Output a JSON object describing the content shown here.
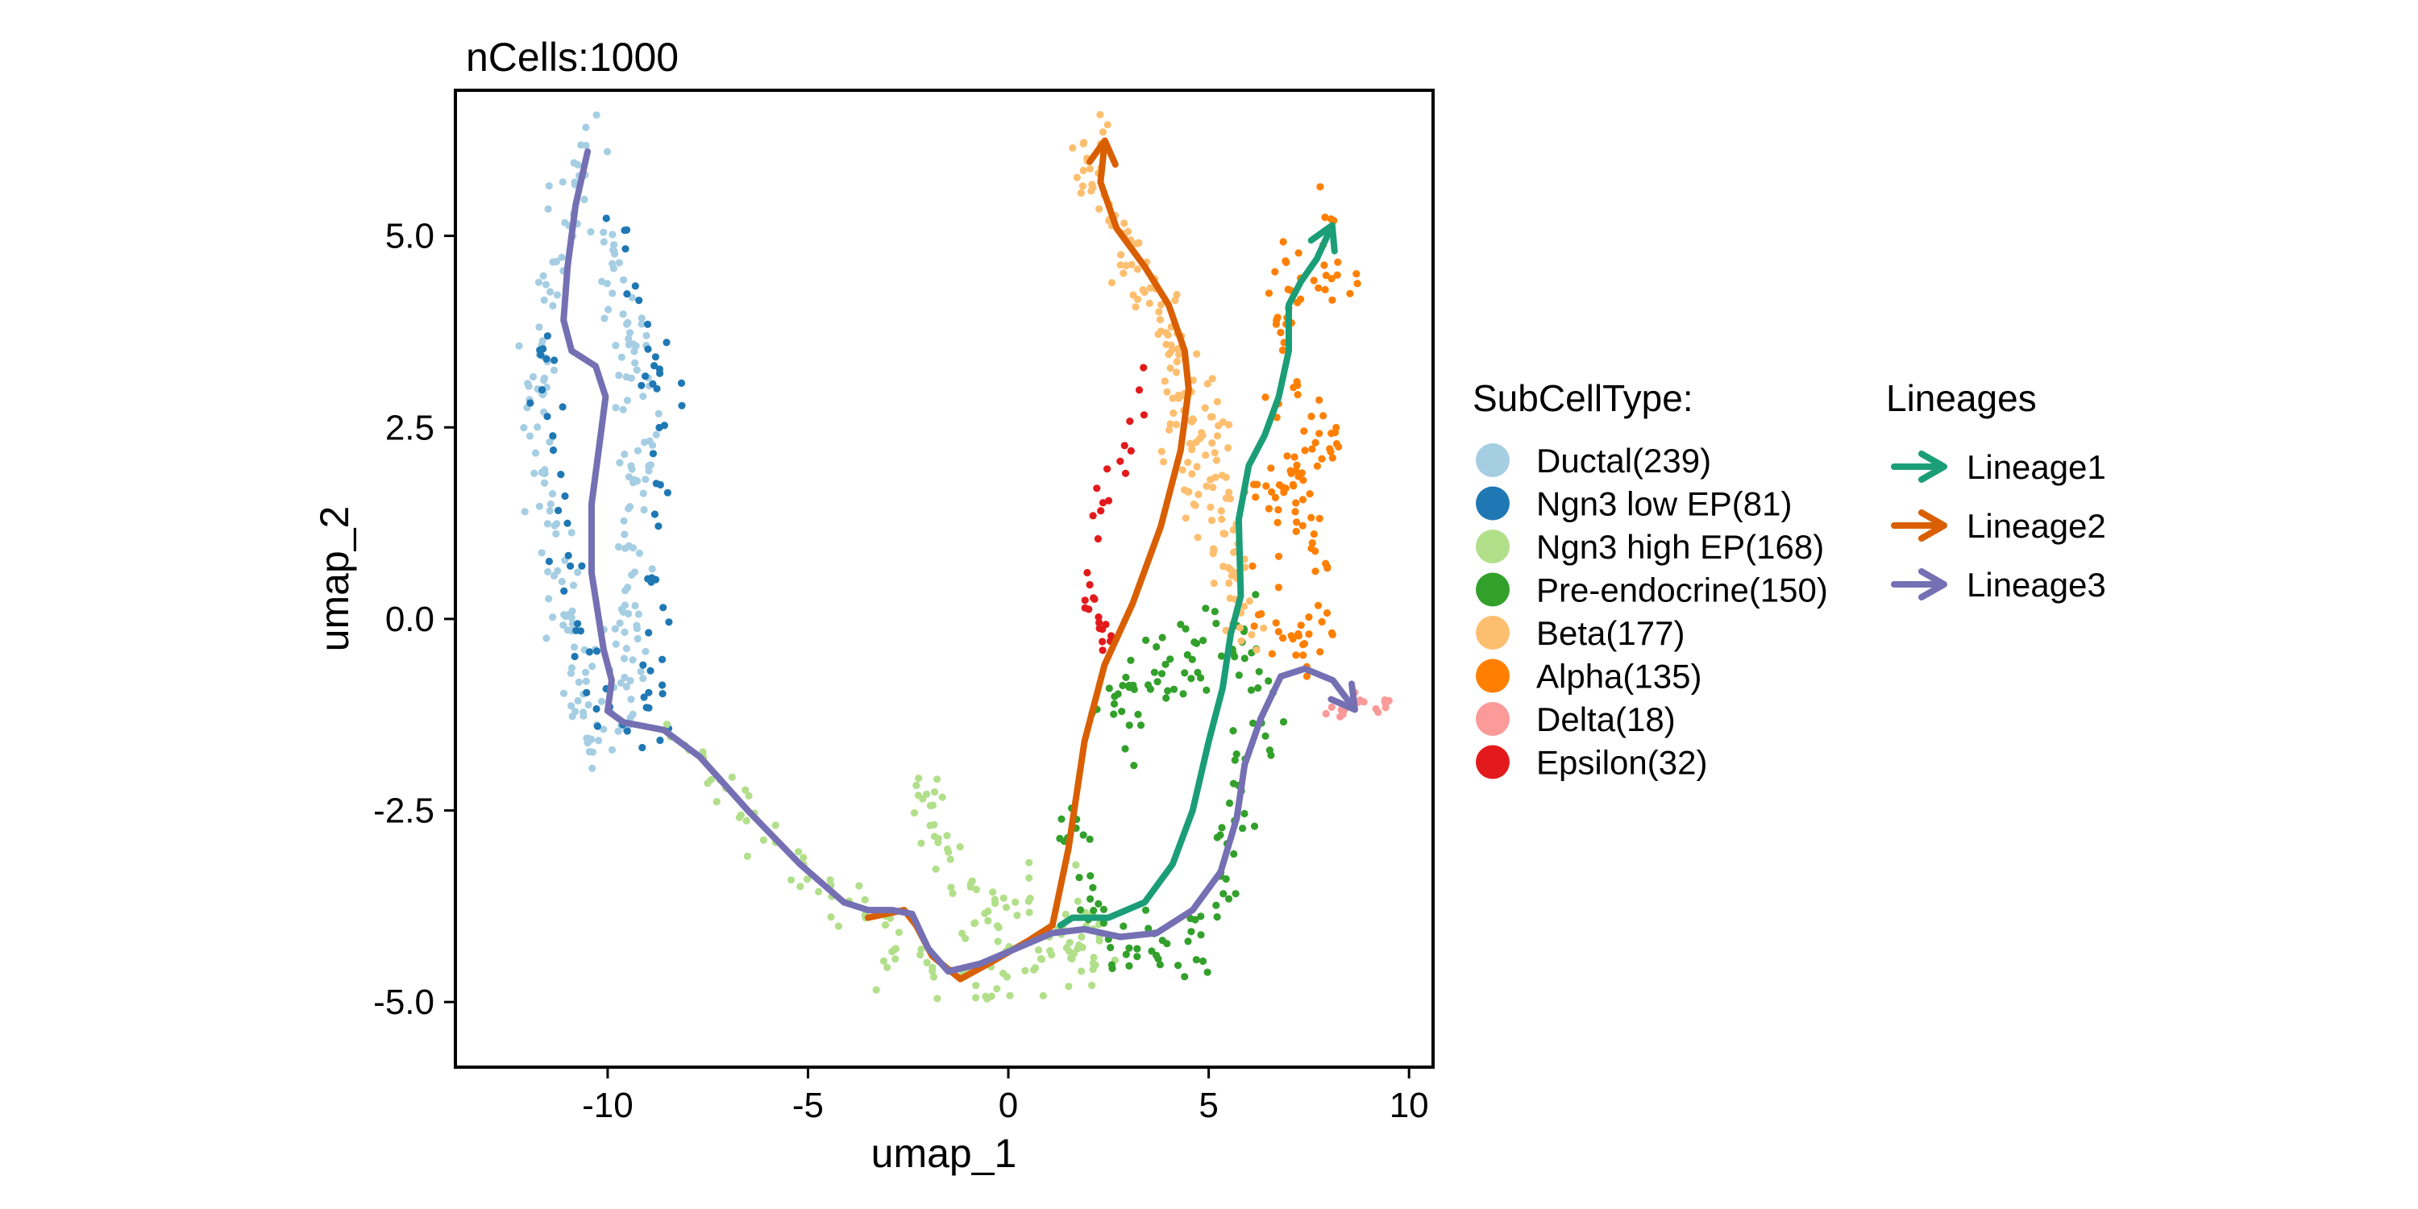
{
  "chart_data": {
    "type": "scatter",
    "title": "nCells:1000",
    "xlabel": "umap_1",
    "ylabel": "umap_2",
    "xlim": [
      -13.8,
      10.6
    ],
    "ylim": [
      -5.85,
      6.9
    ],
    "x_ticks": [
      -10,
      -5,
      0,
      5,
      10
    ],
    "x_tick_labels": [
      "-10",
      "-5",
      "0",
      "5",
      "10"
    ],
    "y_ticks": [
      -5,
      -2.5,
      0,
      2.5,
      5
    ],
    "y_tick_labels": [
      "-5.0",
      "-2.5",
      "0.0",
      "2.5",
      "5.0"
    ],
    "grid": false,
    "legend_placement": "right",
    "legends": [
      {
        "title": "SubCellType:",
        "items": [
          {
            "label": "Ductal(239)",
            "color": "#a6cee3"
          },
          {
            "label": "Ngn3 low EP(81)",
            "color": "#1f78b4"
          },
          {
            "label": "Ngn3 high EP(168)",
            "color": "#b2df8a"
          },
          {
            "label": "Pre-endocrine(150)",
            "color": "#33a02c"
          },
          {
            "label": "Beta(177)",
            "color": "#fdbf6f"
          },
          {
            "label": "Alpha(135)",
            "color": "#ff7f00"
          },
          {
            "label": "Delta(18)",
            "color": "#fb9a99"
          },
          {
            "label": "Epsilon(32)",
            "color": "#e31a1c"
          }
        ]
      },
      {
        "title": "Lineages",
        "items": [
          {
            "label": "Lineage1",
            "color": "#1b9e77"
          },
          {
            "label": "Lineage2",
            "color": "#d95f02"
          },
          {
            "label": "Lineage3",
            "color": "#7570b3"
          }
        ]
      }
    ],
    "clusters": [
      {
        "name": "Ductal(239)",
        "color": "#a6cee3",
        "count": 239,
        "path": [
          [
            -10.5,
            6.3
          ],
          [
            -11.3,
            4.8
          ],
          [
            -11.8,
            3.5
          ],
          [
            -11.6,
            1.8
          ],
          [
            -11.1,
            0.5
          ],
          [
            -10.8,
            -1.0
          ],
          [
            -10.2,
            -1.6
          ],
          [
            -9.4,
            -1.4
          ],
          [
            -9.6,
            0.2
          ],
          [
            -9.2,
            2.0
          ],
          [
            -9.4,
            3.8
          ],
          [
            -10.0,
            5.0
          ]
        ],
        "spread": 0.45
      },
      {
        "name": "Ngn3 low EP(81)",
        "color": "#1f78b4",
        "count": 81,
        "path": [
          [
            -9.8,
            5.2
          ],
          [
            -9.1,
            4.2
          ],
          [
            -8.6,
            2.8
          ],
          [
            -8.6,
            1.8
          ],
          [
            -8.9,
            0.5
          ],
          [
            -9.0,
            -0.8
          ],
          [
            -8.5,
            -1.5
          ],
          [
            -10.2,
            -1.3
          ],
          [
            -11.0,
            0.5
          ],
          [
            -11.7,
            3.9
          ]
        ],
        "spread": 0.35
      },
      {
        "name": "Ngn3 high EP(168)",
        "color": "#b2df8a",
        "count": 168,
        "path": [
          [
            -8.2,
            -1.6
          ],
          [
            -7.0,
            -2.3
          ],
          [
            -5.0,
            -3.3
          ],
          [
            -3.5,
            -4.0
          ],
          [
            -2.5,
            -4.4
          ],
          [
            -1.5,
            -4.8
          ],
          [
            -0.5,
            -4.9
          ],
          [
            0.5,
            -4.6
          ],
          [
            1.5,
            -4.4
          ],
          [
            2.5,
            -4.1
          ],
          [
            0.5,
            -3.7
          ],
          [
            -1.0,
            -3.9
          ],
          [
            -2.3,
            -2.0
          ]
        ],
        "spread": 0.4
      },
      {
        "name": "Pre-endocrine(150)",
        "color": "#33a02c",
        "count": 150,
        "path": [
          [
            1.2,
            -2.5
          ],
          [
            2.0,
            -3.6
          ],
          [
            3.0,
            -4.4
          ],
          [
            4.2,
            -4.4
          ],
          [
            5.3,
            -3.5
          ],
          [
            5.9,
            -2.0
          ],
          [
            6.4,
            -1.0
          ],
          [
            5.8,
            0.0
          ],
          [
            4.5,
            -0.3
          ],
          [
            3.5,
            -1.0
          ],
          [
            2.0,
            -1.2
          ]
        ],
        "spread": 0.5
      },
      {
        "name": "Beta(177)",
        "color": "#fdbf6f",
        "count": 177,
        "path": [
          [
            2.4,
            6.5
          ],
          [
            1.9,
            5.8
          ],
          [
            2.8,
            5.0
          ],
          [
            3.4,
            4.2
          ],
          [
            4.2,
            3.6
          ],
          [
            4.9,
            2.6
          ],
          [
            5.4,
            1.8
          ],
          [
            5.6,
            0.6
          ],
          [
            6.0,
            -0.2
          ],
          [
            5.1,
            0.9
          ],
          [
            4.6,
            2.0
          ],
          [
            4.0,
            3.0
          ]
        ],
        "spread": 0.4
      },
      {
        "name": "Alpha(135)",
        "color": "#ff7f00",
        "count": 135,
        "path": [
          [
            8.0,
            5.3
          ],
          [
            8.5,
            4.3
          ],
          [
            7.1,
            4.6
          ],
          [
            6.6,
            3.5
          ],
          [
            7.5,
            2.5
          ],
          [
            8.3,
            2.2
          ],
          [
            6.2,
            1.8
          ],
          [
            7.6,
            1.2
          ],
          [
            7.9,
            0.2
          ],
          [
            7.0,
            -0.5
          ],
          [
            6.3,
            0.5
          ]
        ],
        "spread": 0.4
      },
      {
        "name": "Delta(18)",
        "color": "#fb9a99",
        "count": 18,
        "path": [
          [
            7.9,
            -1.2
          ],
          [
            8.6,
            -1.15
          ],
          [
            9.5,
            -1.1
          ]
        ],
        "spread": 0.1
      },
      {
        "name": "Epsilon(32)",
        "color": "#e31a1c",
        "count": 32,
        "path": [
          [
            3.5,
            3.5
          ],
          [
            3.2,
            2.5
          ],
          [
            2.3,
            1.6
          ],
          [
            2.0,
            0.3
          ],
          [
            2.5,
            -0.4
          ]
        ],
        "spread": 0.25
      }
    ],
    "lineages": [
      {
        "name": "Lineage1",
        "color": "#1b9e77",
        "points": [
          [
            1.3,
            -4.0
          ],
          [
            1.6,
            -3.9
          ],
          [
            2.5,
            -3.9
          ],
          [
            3.4,
            -3.7
          ],
          [
            4.1,
            -3.2
          ],
          [
            4.6,
            -2.5
          ],
          [
            5.0,
            -1.6
          ],
          [
            5.35,
            -0.9
          ],
          [
            5.55,
            -0.2
          ],
          [
            5.8,
            0.3
          ],
          [
            5.75,
            1.3
          ],
          [
            6.0,
            2.0
          ],
          [
            6.4,
            2.4
          ],
          [
            6.75,
            2.9
          ],
          [
            7.0,
            3.5
          ],
          [
            7.0,
            4.1
          ],
          [
            7.3,
            4.4
          ],
          [
            7.7,
            4.7
          ],
          [
            8.05,
            5.1
          ]
        ]
      },
      {
        "name": "Lineage2",
        "color": "#d95f02",
        "points": [
          [
            -3.5,
            -3.9
          ],
          [
            -2.6,
            -3.8
          ],
          [
            -2.3,
            -4.0
          ],
          [
            -1.9,
            -4.4
          ],
          [
            -1.2,
            -4.7
          ],
          [
            -0.5,
            -4.5
          ],
          [
            0.5,
            -4.2
          ],
          [
            1.1,
            -4.0
          ],
          [
            1.5,
            -3.0
          ],
          [
            1.9,
            -1.6
          ],
          [
            2.4,
            -0.6
          ],
          [
            3.1,
            0.2
          ],
          [
            3.8,
            1.2
          ],
          [
            4.3,
            2.2
          ],
          [
            4.5,
            3.0
          ],
          [
            4.4,
            3.5
          ],
          [
            4.0,
            4.1
          ],
          [
            3.4,
            4.6
          ],
          [
            2.7,
            5.1
          ],
          [
            2.3,
            5.7
          ],
          [
            2.4,
            6.2
          ]
        ]
      },
      {
        "name": "Lineage3",
        "color": "#7570b3",
        "points": [
          [
            -10.5,
            6.1
          ],
          [
            -10.8,
            5.4
          ],
          [
            -11.0,
            4.6
          ],
          [
            -11.1,
            3.9
          ],
          [
            -10.9,
            3.5
          ],
          [
            -10.3,
            3.3
          ],
          [
            -10.05,
            2.9
          ],
          [
            -10.2,
            2.3
          ],
          [
            -10.4,
            1.5
          ],
          [
            -10.4,
            0.6
          ],
          [
            -10.1,
            -0.4
          ],
          [
            -9.9,
            -0.8
          ],
          [
            -10.0,
            -1.2
          ],
          [
            -9.6,
            -1.35
          ],
          [
            -8.6,
            -1.45
          ],
          [
            -7.7,
            -1.8
          ],
          [
            -6.5,
            -2.5
          ],
          [
            -5.2,
            -3.2
          ],
          [
            -4.1,
            -3.7
          ],
          [
            -3.5,
            -3.8
          ],
          [
            -2.9,
            -3.8
          ],
          [
            -2.4,
            -3.85
          ],
          [
            -2.0,
            -4.3
          ],
          [
            -1.5,
            -4.6
          ],
          [
            -0.7,
            -4.5
          ],
          [
            0.2,
            -4.3
          ],
          [
            1.1,
            -4.1
          ],
          [
            1.9,
            -4.05
          ],
          [
            2.8,
            -4.15
          ],
          [
            3.7,
            -4.1
          ],
          [
            4.6,
            -3.8
          ],
          [
            5.3,
            -3.3
          ],
          [
            5.7,
            -2.6
          ],
          [
            5.9,
            -1.9
          ],
          [
            6.3,
            -1.3
          ],
          [
            6.8,
            -0.75
          ],
          [
            7.4,
            -0.65
          ],
          [
            8.1,
            -0.8
          ],
          [
            8.6,
            -1.15
          ]
        ]
      }
    ]
  }
}
